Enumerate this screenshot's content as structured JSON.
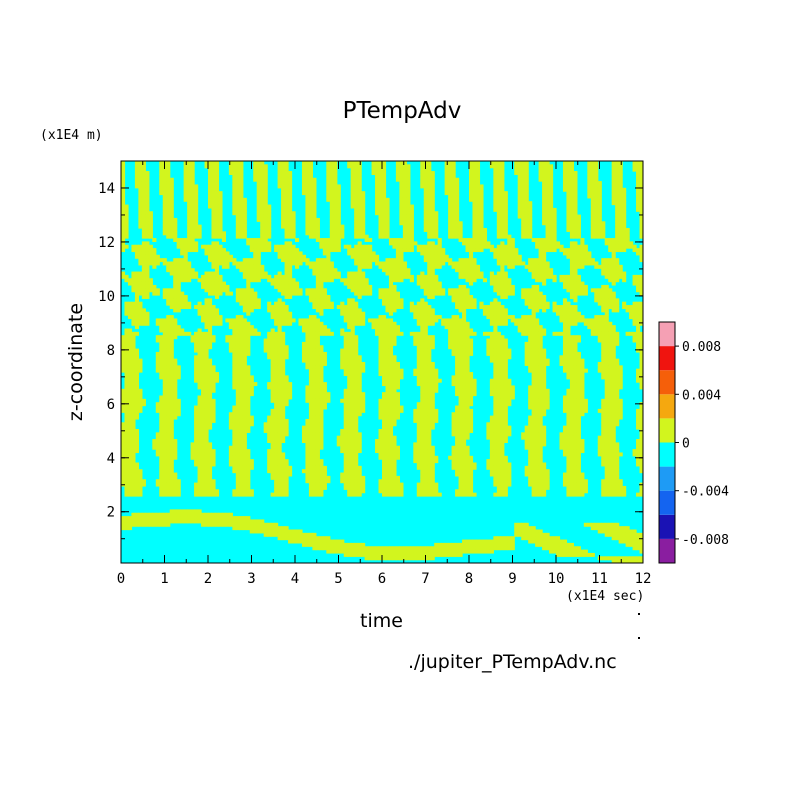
{
  "chart_data": {
    "type": "heatmap",
    "title": "PTempAdv",
    "xlabel": "time",
    "ylabel": "z-coordinate",
    "x_unit": "(x1E4 sec)",
    "y_unit": "(x1E4 m)",
    "xlim": [
      0,
      12
    ],
    "ylim": [
      0.1,
      15
    ],
    "x_ticks": [
      "0",
      "1",
      "2",
      "3",
      "4",
      "5",
      "6",
      "7",
      "8",
      "9",
      "10",
      "11",
      "12"
    ],
    "y_ticks": [
      "2",
      "4",
      "6",
      "8",
      "10",
      "12",
      "14"
    ],
    "colorbar": {
      "levels": [
        -0.01,
        -0.008,
        -0.006,
        -0.004,
        -0.002,
        0,
        0.002,
        0.004,
        0.006,
        0.008,
        0.01
      ],
      "colors": [
        "#8a1ea0",
        "#1a12b4",
        "#1464f0",
        "#1e9bf5",
        "#00ffff",
        "#d2f51e",
        "#f5a80f",
        "#f55f0a",
        "#f0140f",
        "#f5a0b4"
      ],
      "tick_labels": [
        "0.008",
        "0.004",
        "0",
        "-0.004",
        "-0.008"
      ],
      "tick_values": [
        0.008,
        0.004,
        0,
        -0.004,
        -0.008
      ]
    },
    "field_note": "Values fall within [-0.002, 0.002]; near-surface band (z < 2) predominantly -0.002..0; alternating banded pattern above.",
    "grid": false
  },
  "footer": {
    "filename": "./jupiter_PTempAdv.nc"
  }
}
